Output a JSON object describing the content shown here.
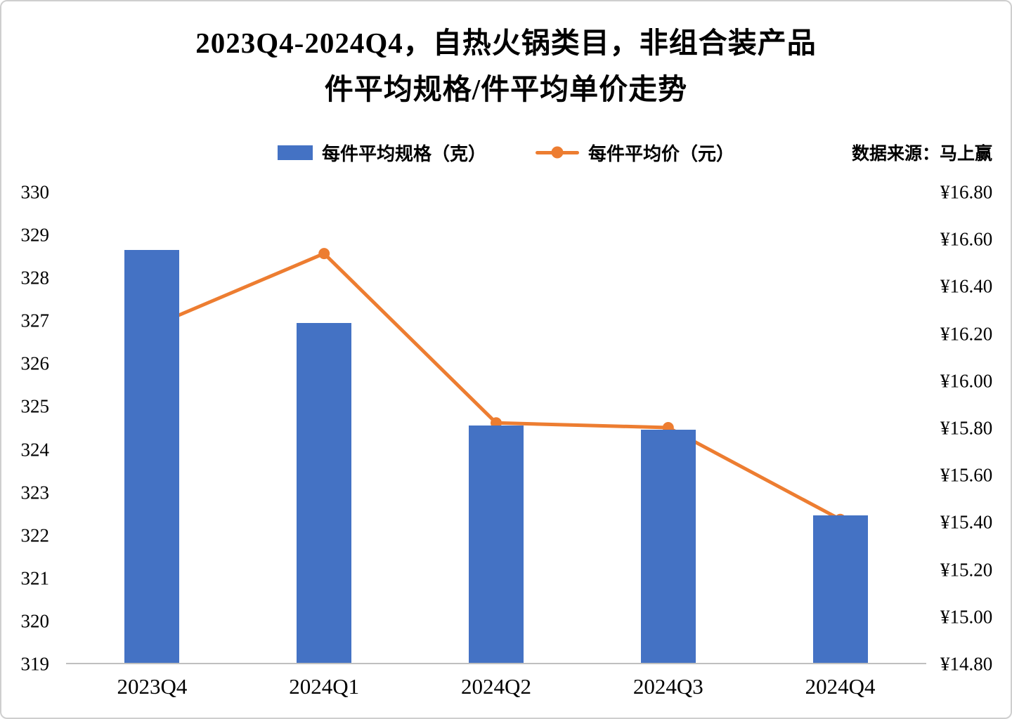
{
  "title": {
    "line1": "2023Q4-2024Q4，自热火锅类目，非组合装产品",
    "line2": "件平均规格/件平均单价走势"
  },
  "legend": {
    "bar_label": "每件平均规格（克）",
    "line_label": "每件平均价（元）",
    "source": "数据来源：马上赢"
  },
  "colors": {
    "bar": "#4472C4",
    "line": "#ED7D31",
    "axis_line": "#BFBFBF",
    "text": "#000000"
  },
  "chart_data": {
    "type": "bar",
    "subtype": "combo-bar-line",
    "title": "2023Q4-2024Q4，自热火锅类目，非组合装产品 件平均规格/件平均单价走势",
    "categories": [
      "2023Q4",
      "2024Q1",
      "2024Q2",
      "2024Q3",
      "2024Q4"
    ],
    "series": [
      {
        "name": "每件平均规格（克）",
        "type": "bar",
        "axis": "left",
        "unit": "克",
        "color": "#4472C4",
        "values": [
          328.65,
          326.95,
          324.55,
          324.45,
          322.45
        ]
      },
      {
        "name": "每件平均价（元）",
        "type": "line",
        "axis": "right",
        "unit": "元",
        "color": "#ED7D31",
        "values": [
          16.23,
          16.54,
          15.82,
          15.8,
          15.41
        ]
      }
    ],
    "left_axis": {
      "min": 319,
      "max": 330,
      "step": 1,
      "ticks": [
        "330",
        "329",
        "328",
        "327",
        "326",
        "325",
        "324",
        "323",
        "322",
        "321",
        "320",
        "319"
      ]
    },
    "right_axis": {
      "min": 14.8,
      "max": 16.8,
      "step": 0.2,
      "currency": "¥",
      "ticks": [
        "¥16.80",
        "¥16.60",
        "¥16.40",
        "¥16.20",
        "¥16.00",
        "¥15.80",
        "¥15.60",
        "¥15.40",
        "¥15.20",
        "¥15.00",
        "¥14.80"
      ]
    },
    "grid": false,
    "legend_position": "top"
  }
}
